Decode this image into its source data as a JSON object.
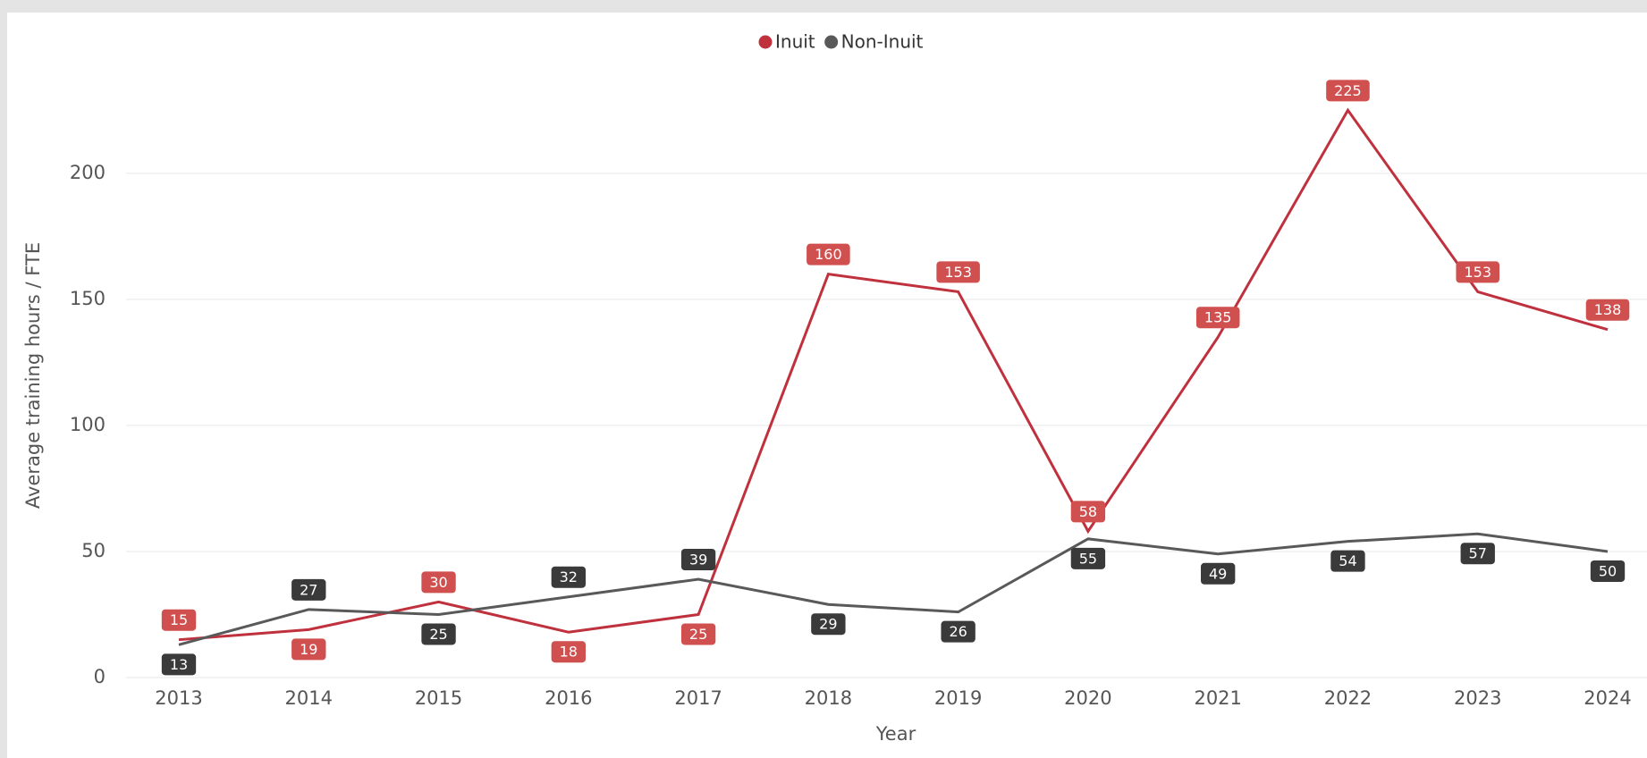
{
  "chart_data": {
    "type": "line",
    "x_label": "Year",
    "y_label": "Average training hours / FTE",
    "categories": [
      "2013",
      "2014",
      "2015",
      "2016",
      "2017",
      "2018",
      "2019",
      "2020",
      "2021",
      "2022",
      "2023",
      "2024"
    ],
    "series": [
      {
        "name": "Inuit",
        "color": "#c0313e",
        "label_color": "#d0504f",
        "values": [
          15,
          19,
          30,
          18,
          25,
          160,
          153,
          58,
          135,
          225,
          153,
          138
        ]
      },
      {
        "name": "Non-Inuit",
        "color": "#595959",
        "label_color": "#3a3a3a",
        "values": [
          13,
          27,
          25,
          32,
          39,
          29,
          26,
          55,
          49,
          54,
          57,
          50
        ]
      }
    ],
    "ylim": [
      0,
      240
    ],
    "yticks": [
      0,
      50,
      100,
      150,
      200
    ],
    "grid": true,
    "legend": "top"
  }
}
